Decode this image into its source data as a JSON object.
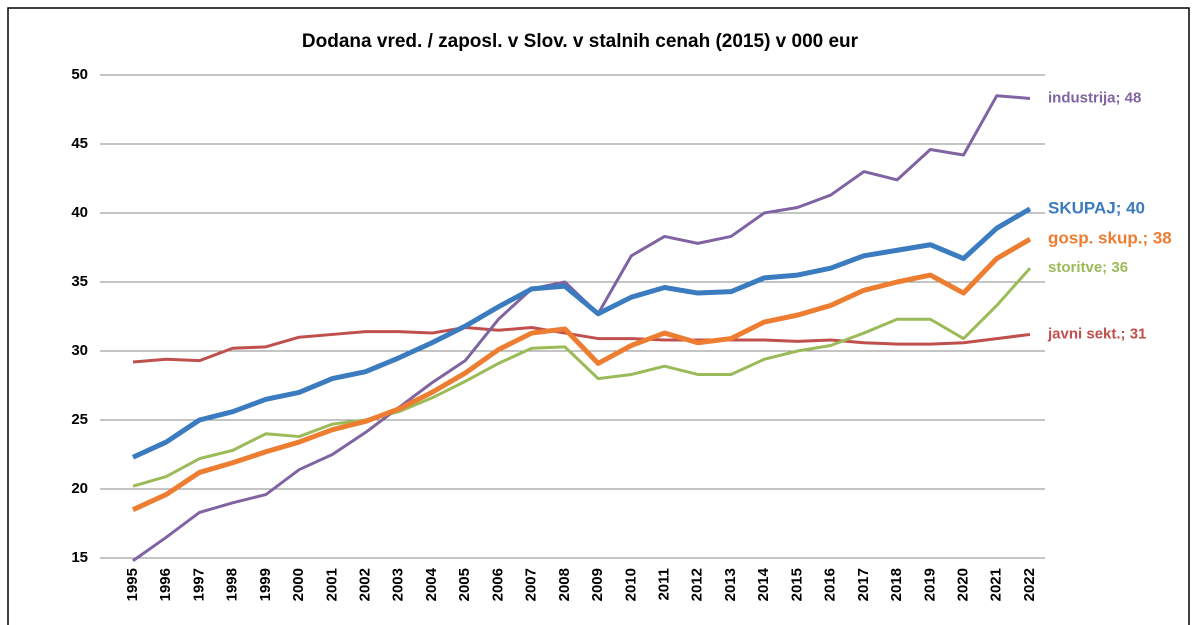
{
  "chart_data": {
    "type": "line",
    "title": "Dodana vred. / zaposl. v  Slov. v stalnih cenah (2015)  v 000 eur",
    "categories": [
      "1995",
      "1996",
      "1997",
      "1998",
      "1999",
      "2000",
      "2001",
      "2002",
      "2003",
      "2004",
      "2005",
      "2006",
      "2007",
      "2008",
      "2009",
      "2010",
      "2011",
      "2012",
      "2013",
      "2014",
      "2015",
      "2016",
      "2017",
      "2018",
      "2019",
      "2020",
      "2021",
      "2022"
    ],
    "ylim": [
      15,
      50
    ],
    "yticks": [
      15,
      20,
      25,
      30,
      35,
      40,
      45,
      50
    ],
    "grid": true,
    "series": [
      {
        "name": "javni sekt.; 31",
        "color": "#c0504d",
        "width": 3,
        "values": [
          29.2,
          29.4,
          29.3,
          30.2,
          30.3,
          31.0,
          31.2,
          31.4,
          31.4,
          31.3,
          31.7,
          31.5,
          31.7,
          31.3,
          30.9,
          30.9,
          30.8,
          30.8,
          30.8,
          30.8,
          30.7,
          30.8,
          30.6,
          30.5,
          30.5,
          30.6,
          30.9,
          31.2
        ]
      },
      {
        "name": "storitve; 36",
        "color": "#9bbb59",
        "width": 3,
        "values": [
          20.2,
          20.9,
          22.2,
          22.8,
          24.0,
          23.8,
          24.7,
          25.0,
          25.6,
          26.6,
          27.8,
          29.1,
          30.2,
          30.3,
          28.0,
          28.3,
          28.9,
          28.3,
          28.3,
          29.4,
          30.0,
          30.4,
          31.3,
          32.3,
          32.3,
          30.9,
          33.3,
          36.0
        ]
      },
      {
        "name": "industrija; 48",
        "color": "#8064a2",
        "width": 3,
        "values": [
          14.8,
          16.5,
          18.3,
          19.0,
          19.6,
          21.4,
          22.5,
          24.1,
          25.9,
          27.7,
          29.3,
          32.3,
          34.5,
          35.0,
          32.7,
          36.9,
          38.3,
          37.8,
          38.3,
          40.0,
          40.4,
          41.3,
          43.0,
          42.4,
          44.6,
          44.2,
          48.5,
          48.3
        ]
      },
      {
        "name": "gosp. skup.; 38",
        "color": "#ed7d31",
        "width": 5,
        "values": [
          18.5,
          19.6,
          21.2,
          21.9,
          22.7,
          23.4,
          24.3,
          24.9,
          25.8,
          27.0,
          28.4,
          30.1,
          31.3,
          31.6,
          29.1,
          30.4,
          31.3,
          30.6,
          30.9,
          32.1,
          32.6,
          33.3,
          34.4,
          35.0,
          35.5,
          34.2,
          36.7,
          38.1
        ]
      },
      {
        "name": "SKUPAJ; 40",
        "color": "#3b7bbf",
        "width": 5,
        "values": [
          22.3,
          23.4,
          25.0,
          25.6,
          26.5,
          27.0,
          28.0,
          28.5,
          29.5,
          30.6,
          31.8,
          33.2,
          34.5,
          34.7,
          32.7,
          33.9,
          34.6,
          34.2,
          34.3,
          35.3,
          35.5,
          36.0,
          36.9,
          37.3,
          37.7,
          36.7,
          38.9,
          40.3
        ]
      }
    ]
  }
}
